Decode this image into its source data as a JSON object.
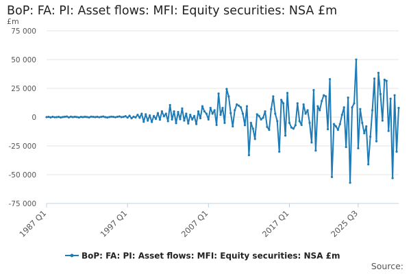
{
  "title": "BoP: FA: PI: Asset flows: MFI: Equity securities: NSA £m",
  "unit_label": "£m",
  "source_label": "Source:",
  "colors": {
    "series": "#1f7bb6",
    "grid": "#e6e6e6",
    "axis": "#c0d0e0"
  },
  "chart_data": {
    "type": "line",
    "title": "BoP: FA: PI: Asset flows: MFI: Equity securities: NSA £m",
    "ylabel": "£m",
    "xlabel": "",
    "ylim": [
      -75000,
      75000
    ],
    "y_ticks": [
      75000,
      50000,
      25000,
      0,
      -25000,
      -50000,
      -75000
    ],
    "y_tick_labels": [
      "75 000",
      "50 000",
      "25 000",
      "0",
      "-25 000",
      "-50 000",
      "-75 000"
    ],
    "x_ticks": [
      "1987 Q1",
      "1997 Q1",
      "2007 Q1",
      "2017 Q1",
      "2025 Q3"
    ],
    "grid": true,
    "legend_position": "bottom",
    "series": [
      {
        "name": "BoP: FA: PI: Asset flows: MFI: Equity securities: NSA £m",
        "start": "1987 Q1",
        "frequency": "quarterly",
        "values": [
          0,
          200,
          -200,
          300,
          -100,
          0,
          200,
          -300,
          100,
          300,
          500,
          -200,
          400,
          0,
          300,
          100,
          -300,
          200,
          0,
          300,
          100,
          -200,
          400,
          200,
          0,
          300,
          -100,
          200,
          500,
          0,
          -300,
          100,
          400,
          200,
          -100,
          300,
          600,
          0,
          200,
          800,
          -400,
          1200,
          -1000,
          400,
          -200,
          2000,
          -500,
          3000,
          -4000,
          2500,
          -3000,
          1500,
          -4200,
          1000,
          -1500,
          3500,
          -2200,
          5000,
          800,
          3000,
          -3500,
          10500,
          -2000,
          5000,
          -5200,
          4500,
          -1800,
          7500,
          -3000,
          3000,
          -5500,
          2000,
          -2000,
          1000,
          -6000,
          5000,
          -1000,
          9500,
          5000,
          3000,
          -2000,
          8000,
          3000,
          6000,
          -6800,
          20500,
          2000,
          8000,
          -5000,
          24500,
          18000,
          3500,
          -8000,
          6000,
          11000,
          10000,
          8500,
          3000,
          -7000,
          9500,
          -33000,
          -5000,
          -10000,
          -19000,
          2500,
          1000,
          -2000,
          -500,
          5000,
          -8500,
          -11000,
          7000,
          18000,
          3000,
          -3500,
          -30000,
          15000,
          12000,
          -16000,
          21000,
          -5000,
          -9000,
          -10000,
          -7000,
          12000,
          -3500,
          -6800,
          11000,
          3000,
          6000,
          -5000,
          -22000,
          23500,
          -29000,
          9500,
          6000,
          14000,
          19000,
          18000,
          -10500,
          33000,
          -52000,
          -6000,
          -8000,
          -11000,
          -6000,
          2000,
          8500,
          -26000,
          17000,
          -57000,
          8500,
          12000,
          50000,
          -27000,
          7000,
          -5000,
          -14000,
          -8000,
          -41000,
          -17000,
          6000,
          33500,
          -21000,
          38500,
          20000,
          -3000,
          32500,
          31500,
          -12000,
          16000,
          -53000,
          19000,
          -30000,
          8000
        ]
      }
    ]
  }
}
